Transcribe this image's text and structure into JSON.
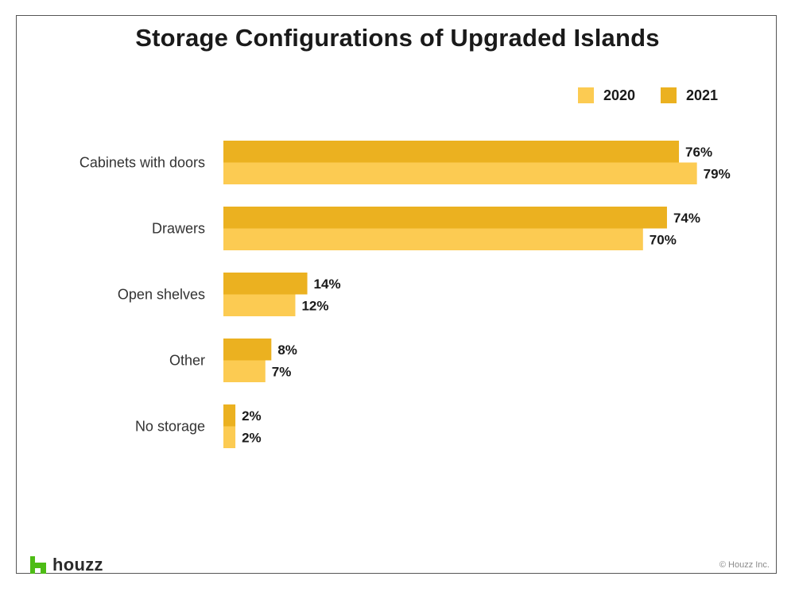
{
  "chart_data": {
    "type": "bar",
    "orientation": "horizontal",
    "title": "Storage Configurations of Upgraded Islands",
    "categories": [
      "Cabinets with doors",
      "Drawers",
      "Open shelves",
      "Other",
      "No storage"
    ],
    "series": [
      {
        "name": "2021",
        "values": [
          76,
          74,
          14,
          8,
          2
        ],
        "labels": [
          "76%",
          "74%",
          "14%",
          "8%",
          "2%"
        ],
        "color": "#ebb120"
      },
      {
        "name": "2020",
        "values": [
          79,
          70,
          12,
          7,
          2
        ],
        "labels": [
          "79%",
          "70%",
          "12%",
          "7%",
          "2%"
        ],
        "color": "#fccb52"
      }
    ],
    "legend": {
      "position": "top-right",
      "order": [
        "2020",
        "2021"
      ]
    },
    "xlim": [
      0,
      100
    ],
    "xlabel": "",
    "ylabel": "",
    "grid": false
  },
  "legend": {
    "items": [
      {
        "label": "2020",
        "color": "#fccb52"
      },
      {
        "label": "2021",
        "color": "#ebb120"
      }
    ]
  },
  "footer": {
    "brand": "houzz",
    "brand_color": "#4dbc15",
    "copyright": "© Houzz Inc."
  }
}
